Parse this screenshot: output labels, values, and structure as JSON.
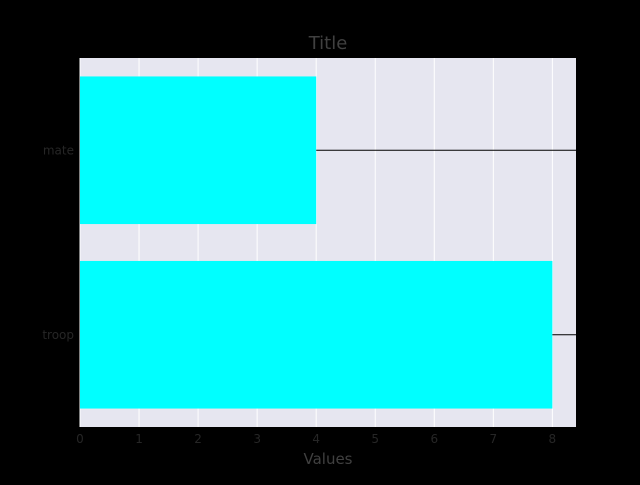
{
  "chart_data": {
    "type": "bar",
    "orientation": "horizontal",
    "title": "Title",
    "xlabel": "Values",
    "ylabel": "",
    "categories": [
      "mate",
      "troop"
    ],
    "values": [
      4,
      8
    ],
    "xlim": [
      0,
      8.4
    ],
    "xticks": [
      0,
      1,
      2,
      3,
      4,
      5,
      6,
      7,
      8
    ],
    "grid": true,
    "legend": "none",
    "colors": {
      "bar": "#00FFFF",
      "plot_background": "#E6E6F0",
      "figure_background": "#000000",
      "grid": "#FFFFFF",
      "text": "#262626",
      "title": "#404040"
    }
  }
}
